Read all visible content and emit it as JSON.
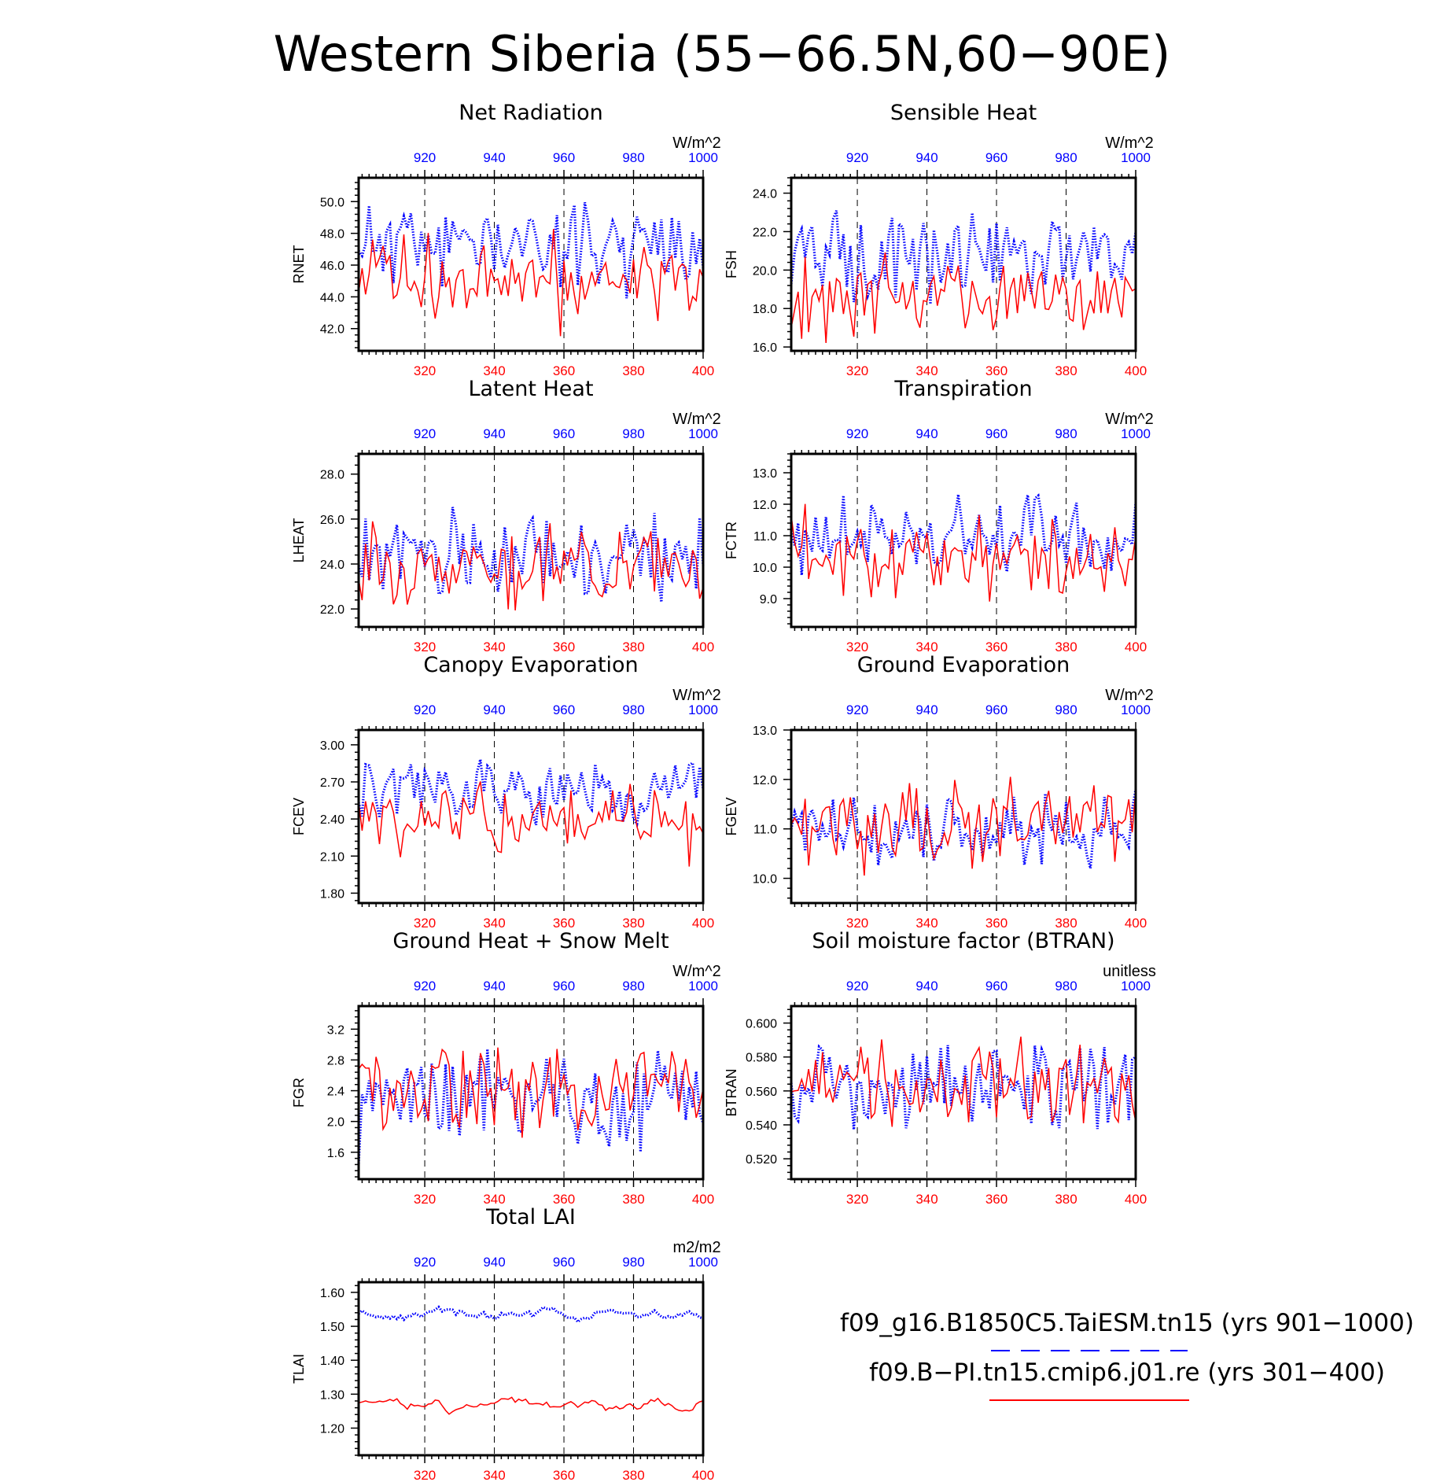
{
  "title": "Western Siberia (55−66.5N,60−90E)",
  "colors": {
    "case1": "#0000ff",
    "case2": "#ff0000",
    "frame": "#000000"
  },
  "legend": {
    "items": [
      {
        "label": "f09_g16.B1850C5.TaiESM.tn15 (yrs 901−1000)",
        "color": "#0000ff",
        "style": "dashed"
      },
      {
        "label": "f09.B−PI.tn15.cmip6.j01.re (yrs 301−400)",
        "color": "#ff0000",
        "style": "solid"
      }
    ]
  },
  "chart_data": [
    {
      "type": "line",
      "title": "Net Radiation",
      "ylabel": "RNET",
      "units": "W/m^2",
      "x_bottom": {
        "range": [
          301,
          400
        ],
        "ticks": [
          320,
          340,
          360,
          380,
          400
        ]
      },
      "x_top": {
        "range": [
          901,
          1000
        ],
        "ticks": [
          920,
          940,
          960,
          980,
          1000
        ]
      },
      "ylim": [
        40.6,
        51.5
      ],
      "yticks": [
        "42.0",
        "44.0",
        "46.0",
        "48.0",
        "50.0"
      ],
      "yticks_value": [
        42,
        44,
        46,
        48,
        50
      ],
      "series": [
        {
          "color": "#0000ff",
          "dotted": true,
          "axis": "top",
          "mean": 47.4,
          "amp": 1.6,
          "seed": 11
        },
        {
          "color": "#ff0000",
          "dotted": false,
          "axis": "bottom",
          "mean": 45.2,
          "amp": 1.7,
          "seed": 12
        }
      ]
    },
    {
      "type": "line",
      "title": "Sensible Heat",
      "ylabel": "FSH",
      "units": "W/m^2",
      "x_bottom": {
        "range": [
          301,
          400
        ],
        "ticks": [
          320,
          340,
          360,
          380,
          400
        ]
      },
      "x_top": {
        "range": [
          901,
          1000
        ],
        "ticks": [
          920,
          940,
          960,
          980,
          1000
        ]
      },
      "ylim": [
        15.8,
        24.8
      ],
      "yticks": [
        "16.0",
        "18.0",
        "20.0",
        "22.0",
        "24.0"
      ],
      "yticks_value": [
        16,
        18,
        20,
        22,
        24
      ],
      "series": [
        {
          "color": "#0000ff",
          "dotted": true,
          "axis": "top",
          "mean": 20.8,
          "amp": 1.3,
          "seed": 21
        },
        {
          "color": "#ff0000",
          "dotted": false,
          "axis": "bottom",
          "mean": 18.7,
          "amp": 1.2,
          "seed": 22
        }
      ]
    },
    {
      "type": "line",
      "title": "Latent Heat",
      "ylabel": "LHEAT",
      "units": "W/m^2",
      "x_bottom": {
        "range": [
          301,
          400
        ],
        "ticks": [
          320,
          340,
          360,
          380,
          400
        ]
      },
      "x_top": {
        "range": [
          901,
          1000
        ],
        "ticks": [
          920,
          940,
          960,
          980,
          1000
        ]
      },
      "ylim": [
        21.2,
        28.9
      ],
      "yticks": [
        "22.0",
        "24.0",
        "26.0",
        "28.0"
      ],
      "yticks_value": [
        22,
        24,
        26,
        28
      ],
      "series": [
        {
          "color": "#0000ff",
          "dotted": true,
          "axis": "top",
          "mean": 24.4,
          "amp": 1.1,
          "seed": 31
        },
        {
          "color": "#ff0000",
          "dotted": false,
          "axis": "bottom",
          "mean": 24.0,
          "amp": 1.0,
          "seed": 32
        }
      ]
    },
    {
      "type": "line",
      "title": "Transpiration",
      "ylabel": "FCTR",
      "units": "W/m^2",
      "x_bottom": {
        "range": [
          301,
          400
        ],
        "ticks": [
          320,
          340,
          360,
          380,
          400
        ]
      },
      "x_top": {
        "range": [
          901,
          1000
        ],
        "ticks": [
          920,
          940,
          960,
          980,
          1000
        ]
      },
      "ylim": [
        8.1,
        13.6
      ],
      "yticks": [
        "9.0",
        "10.0",
        "11.0",
        "12.0",
        "13.0"
      ],
      "yticks_value": [
        9,
        10,
        11,
        12,
        13
      ],
      "series": [
        {
          "color": "#0000ff",
          "dotted": true,
          "axis": "top",
          "mean": 10.9,
          "amp": 0.8,
          "seed": 41
        },
        {
          "color": "#ff0000",
          "dotted": false,
          "axis": "bottom",
          "mean": 10.3,
          "amp": 0.8,
          "seed": 42
        }
      ]
    },
    {
      "type": "line",
      "title": "Canopy Evaporation",
      "ylabel": "FCEV",
      "units": "W/m^2",
      "x_bottom": {
        "range": [
          301,
          400
        ],
        "ticks": [
          320,
          340,
          360,
          380,
          400
        ]
      },
      "x_top": {
        "range": [
          901,
          1000
        ],
        "ticks": [
          920,
          940,
          960,
          980,
          1000
        ]
      },
      "ylim": [
        1.72,
        3.12
      ],
      "yticks": [
        "1.80",
        "2.10",
        "2.40",
        "2.70",
        "3.00"
      ],
      "yticks_value": [
        1.8,
        2.1,
        2.4,
        2.7,
        3.0
      ],
      "series": [
        {
          "color": "#0000ff",
          "dotted": true,
          "axis": "top",
          "mean": 2.62,
          "amp": 0.16,
          "seed": 51
        },
        {
          "color": "#ff0000",
          "dotted": false,
          "axis": "bottom",
          "mean": 2.38,
          "amp": 0.2,
          "seed": 52
        }
      ]
    },
    {
      "type": "line",
      "title": "Ground Evaporation",
      "ylabel": "FGEV",
      "units": "W/m^2",
      "x_bottom": {
        "range": [
          301,
          400
        ],
        "ticks": [
          320,
          340,
          360,
          380,
          400
        ]
      },
      "x_top": {
        "range": [
          901,
          1000
        ],
        "ticks": [
          920,
          940,
          960,
          980,
          1000
        ]
      },
      "ylim": [
        9.5,
        13.0
      ],
      "yticks": [
        "10.0",
        "11.0",
        "12.0",
        "13.0"
      ],
      "yticks_value": [
        10,
        11,
        12,
        13
      ],
      "series": [
        {
          "color": "#0000ff",
          "dotted": true,
          "axis": "top",
          "mean": 10.9,
          "amp": 0.45,
          "seed": 61
        },
        {
          "color": "#ff0000",
          "dotted": false,
          "axis": "bottom",
          "mean": 11.1,
          "amp": 0.5,
          "seed": 62
        }
      ]
    },
    {
      "type": "line",
      "title": "Ground Heat + Snow Melt",
      "ylabel": "FGR",
      "units": "W/m^2",
      "x_bottom": {
        "range": [
          301,
          400
        ],
        "ticks": [
          320,
          340,
          360,
          380,
          400
        ]
      },
      "x_top": {
        "range": [
          901,
          1000
        ],
        "ticks": [
          920,
          940,
          960,
          980,
          1000
        ]
      },
      "ylim": [
        1.25,
        3.5
      ],
      "yticks": [
        "1.6",
        "2.0",
        "2.4",
        "2.8",
        "3.2"
      ],
      "yticks_value": [
        1.6,
        2.0,
        2.4,
        2.8,
        3.2
      ],
      "series": [
        {
          "color": "#0000ff",
          "dotted": true,
          "axis": "top",
          "mean": 2.35,
          "amp": 0.4,
          "seed": 71
        },
        {
          "color": "#ff0000",
          "dotted": false,
          "axis": "bottom",
          "mean": 2.4,
          "amp": 0.4,
          "seed": 72
        }
      ]
    },
    {
      "type": "line",
      "title": "Soil moisture factor (BTRAN)",
      "ylabel": "BTRAN",
      "units": "unitless",
      "x_bottom": {
        "range": [
          301,
          400
        ],
        "ticks": [
          320,
          340,
          360,
          380,
          400
        ]
      },
      "x_top": {
        "range": [
          901,
          1000
        ],
        "ticks": [
          920,
          940,
          960,
          980,
          1000
        ]
      },
      "ylim": [
        0.508,
        0.61
      ],
      "yticks": [
        "0.520",
        "0.540",
        "0.560",
        "0.580",
        "0.600"
      ],
      "yticks_value": [
        0.52,
        0.54,
        0.56,
        0.58,
        0.6
      ],
      "series": [
        {
          "color": "#0000ff",
          "dotted": true,
          "axis": "top",
          "mean": 0.563,
          "amp": 0.018,
          "seed": 81
        },
        {
          "color": "#ff0000",
          "dotted": false,
          "axis": "bottom",
          "mean": 0.562,
          "amp": 0.016,
          "seed": 82
        }
      ]
    },
    {
      "type": "line",
      "title": "Total LAI",
      "ylabel": "TLAI",
      "units": "m2/m2",
      "x_bottom": {
        "range": [
          301,
          400
        ],
        "ticks": [
          320,
          340,
          360,
          380,
          400
        ]
      },
      "x_top": {
        "range": [
          901,
          1000
        ],
        "ticks": [
          920,
          940,
          960,
          980,
          1000
        ]
      },
      "ylim": [
        1.12,
        1.63
      ],
      "yticks": [
        "1.20",
        "1.30",
        "1.40",
        "1.50",
        "1.60"
      ],
      "yticks_value": [
        1.2,
        1.3,
        1.4,
        1.5,
        1.6
      ],
      "series": [
        {
          "color": "#0000ff",
          "dotted": true,
          "axis": "top",
          "mean": 1.53,
          "amp": 0.035,
          "seed": 91,
          "smooth": true
        },
        {
          "color": "#ff0000",
          "dotted": false,
          "axis": "bottom",
          "mean": 1.27,
          "amp": 0.03,
          "seed": 92,
          "smooth": true
        }
      ]
    }
  ]
}
